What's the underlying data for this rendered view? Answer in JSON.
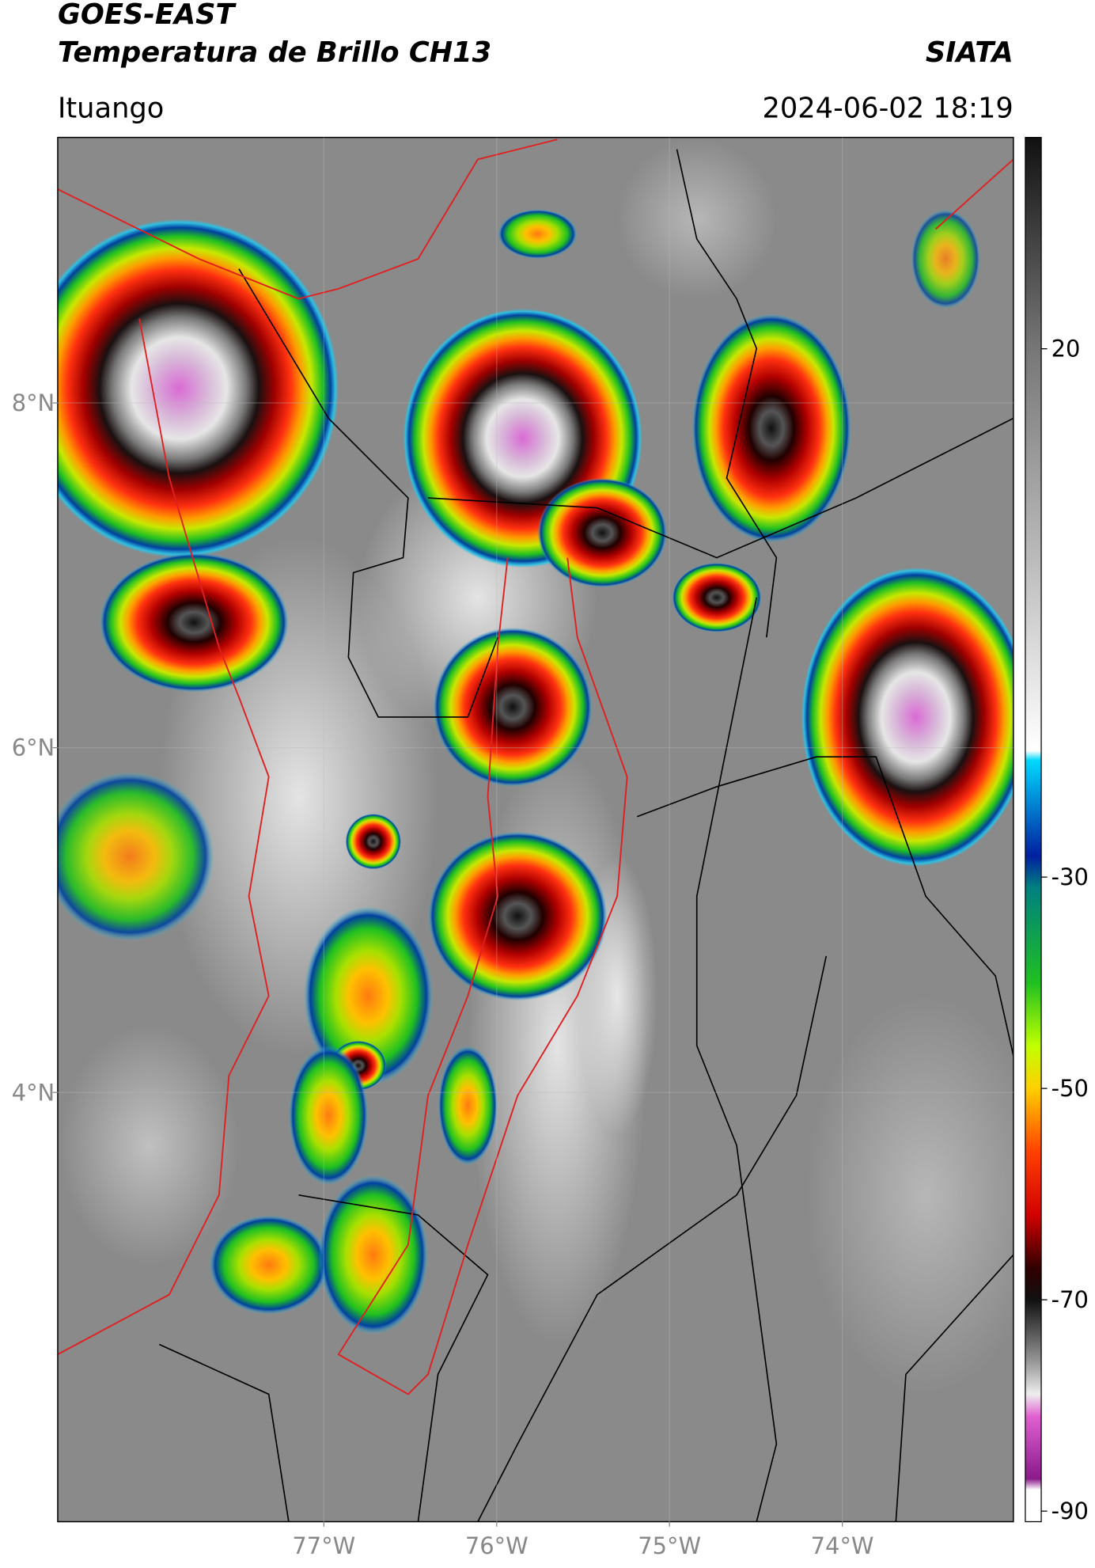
{
  "header": {
    "title": "GOES-EAST",
    "subtitle": "Temperatura de Brillo CH13",
    "source": "SIATA",
    "location": "Ituango",
    "datetime": "2024-06-02 18:19"
  },
  "map": {
    "latlim": [
      1.51,
      9.54
    ],
    "lonlim": [
      -78.54,
      -73.01
    ],
    "latticks": [
      {
        "value": 8,
        "label": "8°N"
      },
      {
        "value": 6,
        "label": "6°N"
      },
      {
        "value": 4,
        "label": "4°N"
      }
    ],
    "lonticks": [
      {
        "value": -77,
        "label": "77°W"
      },
      {
        "value": -76,
        "label": "76°W"
      },
      {
        "value": -75,
        "label": "75°W"
      },
      {
        "value": -74,
        "label": "74°W"
      }
    ],
    "grid": true
  },
  "colorbar": {
    "lim": [
      -91,
      40
    ],
    "ticks": [
      20,
      -30,
      -50,
      -70,
      -90
    ]
  }
}
